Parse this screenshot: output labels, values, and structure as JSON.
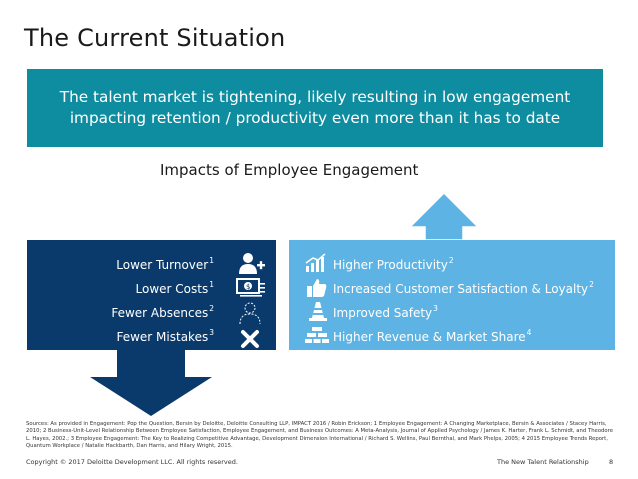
{
  "slide": {
    "title": "The Current Situation",
    "banner": {
      "line1": "The talent market is tightening, likely resulting in low engagement",
      "line2": "impacting retention / productivity even more than it has to date"
    },
    "impacts_heading": "Impacts of Employee Engagement",
    "left_items": [
      {
        "label": "Lower Turnover",
        "sup": "1",
        "icon": "user-plus-icon"
      },
      {
        "label": "Lower Costs",
        "sup": "1",
        "icon": "dollar-bill-icon"
      },
      {
        "label": "Fewer Absences",
        "sup": "2",
        "icon": "person-outline-icon"
      },
      {
        "label": "Fewer Mistakes",
        "sup": "3",
        "icon": "x-mark-icon"
      }
    ],
    "right_items": [
      {
        "label": "Higher Productivity",
        "sup": "2",
        "icon": "growth-chart-icon"
      },
      {
        "label": "Increased Customer Satisfaction & Loyalty",
        "sup": "2",
        "icon": "thumbs-up-icon"
      },
      {
        "label": "Improved Safety",
        "sup": "3",
        "icon": "safety-cone-icon"
      },
      {
        "label": "Higher Revenue & Market Share",
        "sup": "4",
        "icon": "money-stack-icon"
      }
    ],
    "colors": {
      "banner": "#0f8da0",
      "navy": "#0a3a6c",
      "light_blue": "#5cb3e4"
    },
    "footnote": "Sources: As provided in Engagement: Pop the Question, Bersin by Deloitte, Deloitte Consulting LLP, IMPACT 2016 / Robin Erickson; 1 Employee Engagement: A Changing Marketplace, Bersin & Associates / Stacey Harris, 2010; 2 Business-Unit-Level Relationship Between Employee Satisfaction, Employee Engagement, and Business Outcomes: A Meta-Analysis, Journal of Applied Psychology / James K. Harter, Frank L. Schmidt, and Theodore L. Hayes, 2002.; 3 Employee Engagement: The Key to Realizing Competitive Advantage, Development Dimension International / Richard S. Wellins, Paul Bernthal, and Mark Phelps, 2005; 4 2015 Employee Trends Report, Quantum Workplace / Natalie Hackbarth, Dan Harris, and Hilary Wright, 2015.",
    "footer_left": "Copyright © 2017 Deloitte Development LLC. All rights reserved.",
    "footer_right": "The New Talent Relationship",
    "page_number": "8"
  }
}
